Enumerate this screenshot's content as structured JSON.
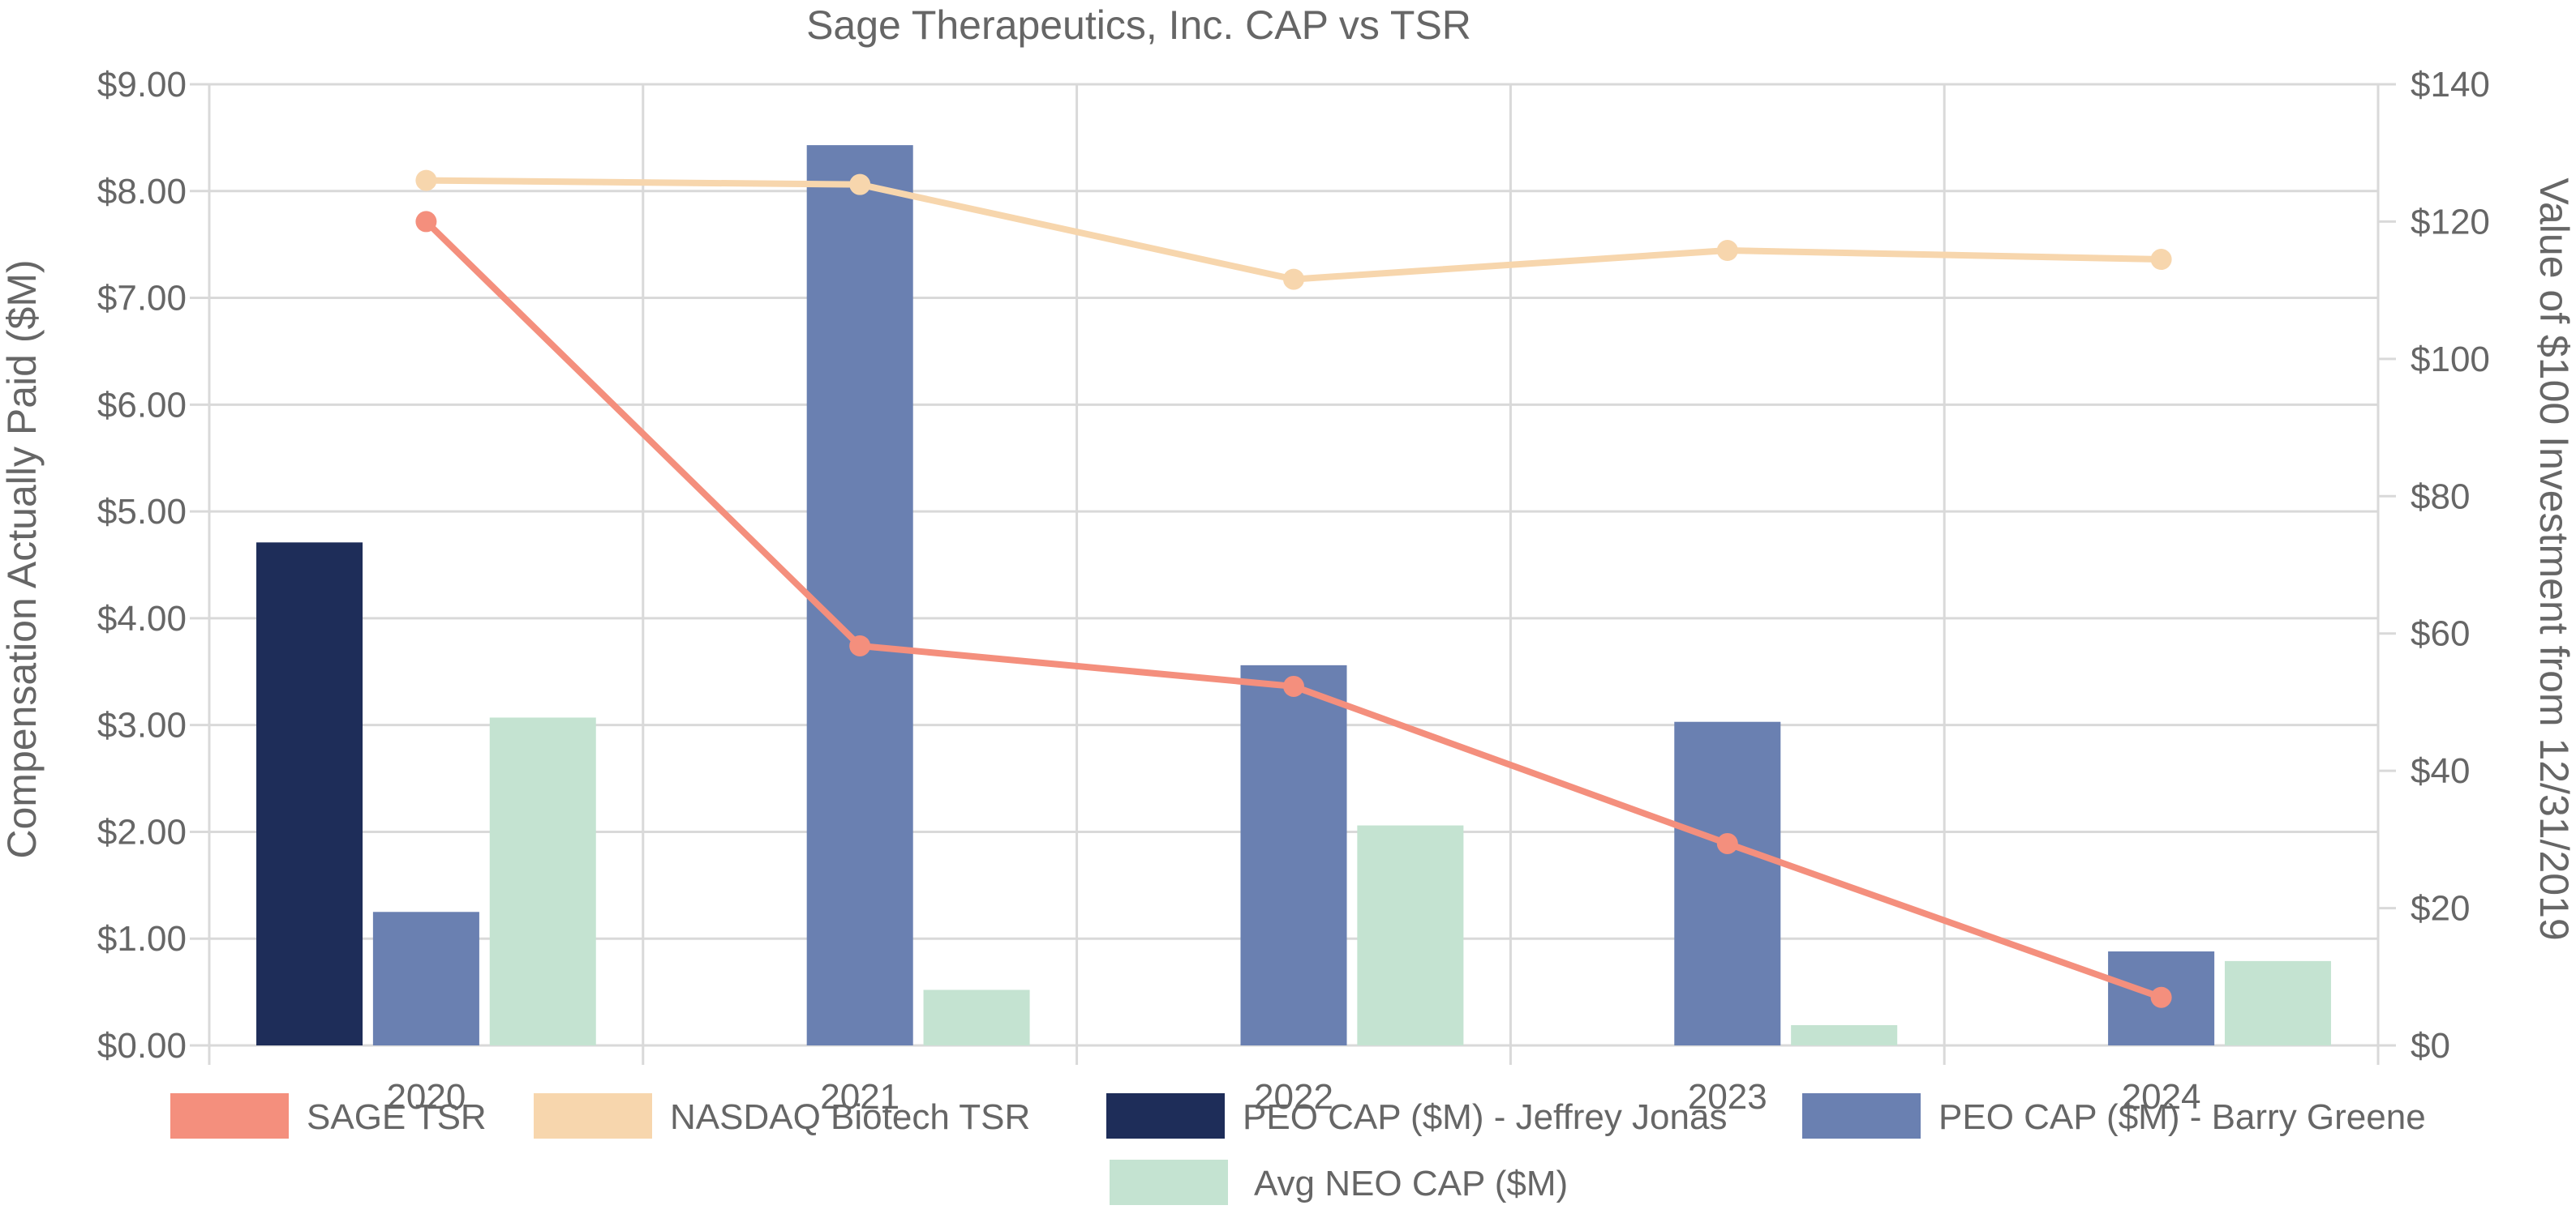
{
  "chart_data": {
    "type": "bar",
    "title": "Sage Therapeutics, Inc. CAP vs TSR",
    "categories": [
      "2020",
      "2021",
      "2022",
      "2023",
      "2024"
    ],
    "ylabel": "Compensation Actually Paid ($M)",
    "y2label": "Value of $100 Investment from 12/31/2019",
    "ylim": [
      0,
      9
    ],
    "y2lim": [
      0,
      140
    ],
    "y_ticks": [
      "$0.00",
      "$1.00",
      "$2.00",
      "$3.00",
      "$4.00",
      "$5.00",
      "$6.00",
      "$7.00",
      "$8.00",
      "$9.00"
    ],
    "y2_ticks": [
      "$0",
      "$20",
      "$40",
      "$60",
      "$80",
      "$100",
      "$120",
      "$140"
    ],
    "grid": true,
    "legend_position": "bottom",
    "bar_series": [
      {
        "name": "PEO CAP ($M) - Jeffrey Jonas",
        "color": "#1e2d59",
        "values": [
          4.71,
          null,
          null,
          null,
          null
        ]
      },
      {
        "name": "PEO CAP ($M) - Barry Greene",
        "color": "#6a80b1",
        "values": [
          1.25,
          8.43,
          3.56,
          3.03,
          0.88
        ]
      },
      {
        "name": "Avg NEO CAP ($M)",
        "color": "#c4e3d1",
        "values": [
          3.07,
          0.52,
          2.06,
          0.19,
          0.79
        ]
      }
    ],
    "line_series": [
      {
        "name": "SAGE TSR",
        "color": "#f48f7d",
        "axis": "right",
        "values": [
          120.0,
          58.2,
          52.3,
          29.4,
          7.0
        ]
      },
      {
        "name": "NASDAQ Biotech TSR",
        "color": "#f7d6ad",
        "axis": "right",
        "values": [
          126.0,
          125.4,
          111.6,
          115.8,
          114.5
        ]
      }
    ],
    "legend": [
      {
        "name": "SAGE TSR",
        "color": "#f48f7d"
      },
      {
        "name": "NASDAQ Biotech TSR",
        "color": "#f7d6ad"
      },
      {
        "name": "PEO CAP ($M) - Jeffrey Jonas",
        "color": "#1e2d59"
      },
      {
        "name": "PEO CAP ($M) - Barry Greene",
        "color": "#6a80b1"
      },
      {
        "name": "Avg NEO CAP ($M)",
        "color": "#c4e3d1"
      }
    ]
  }
}
